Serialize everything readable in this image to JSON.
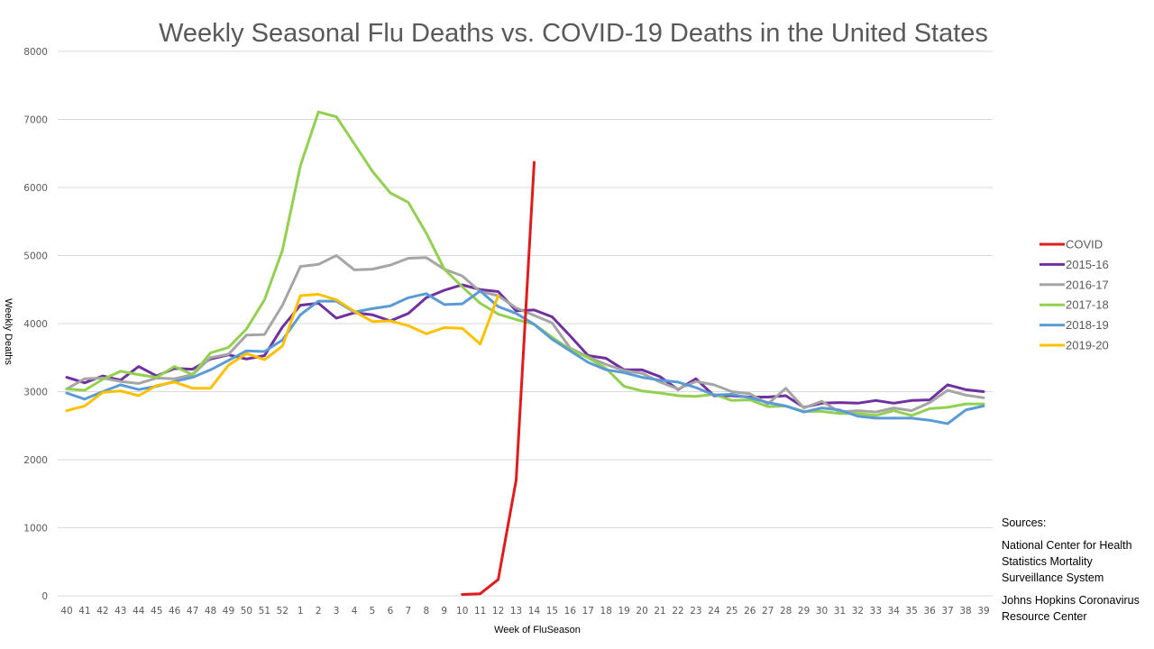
{
  "chart_data": {
    "type": "line",
    "title": "Weekly Seasonal Flu Deaths vs. COVID-19 Deaths in the United States",
    "xlabel": "Week of FluSeason",
    "ylabel": "Weekly Deaths",
    "ylim": [
      0,
      8000
    ],
    "yticks": [
      "0",
      "1000",
      "2000",
      "3000",
      "4000",
      "5000",
      "6000",
      "7000",
      "8000"
    ],
    "grid": true,
    "legend_position": "right",
    "categories": [
      "40",
      "41",
      "42",
      "43",
      "44",
      "45",
      "46",
      "47",
      "48",
      "49",
      "50",
      "51",
      "52",
      "1",
      "2",
      "3",
      "4",
      "5",
      "6",
      "7",
      "8",
      "9",
      "10",
      "11",
      "12",
      "13",
      "14",
      "15",
      "16",
      "17",
      "18",
      "19",
      "20",
      "21",
      "22",
      "23",
      "24",
      "25",
      "26",
      "27",
      "28",
      "29",
      "30",
      "31",
      "32",
      "33",
      "34",
      "35",
      "36",
      "37",
      "38",
      "39"
    ],
    "series": [
      {
        "name": "COVID",
        "color": "#e01b1b",
        "values": [
          null,
          null,
          null,
          null,
          null,
          null,
          null,
          null,
          null,
          null,
          null,
          null,
          null,
          null,
          null,
          null,
          null,
          null,
          null,
          null,
          null,
          null,
          20,
          30,
          240,
          1700,
          6370,
          null,
          null,
          null,
          null,
          null,
          null,
          null,
          null,
          null,
          null,
          null,
          null,
          null,
          null,
          null,
          null,
          null,
          null,
          null,
          null,
          null,
          null,
          null,
          null,
          null
        ]
      },
      {
        "name": "2015-16",
        "color": "#7030a0",
        "values": [
          3210,
          3130,
          3230,
          3170,
          3370,
          3230,
          3340,
          3330,
          3480,
          3540,
          3480,
          3530,
          3950,
          4270,
          4300,
          4080,
          4160,
          4130,
          4040,
          4150,
          4380,
          4490,
          4570,
          4500,
          4470,
          4190,
          4200,
          4100,
          3820,
          3530,
          3490,
          3320,
          3320,
          3220,
          3030,
          3190,
          2940,
          2940,
          2920,
          2920,
          2940,
          2770,
          2830,
          2840,
          2830,
          2870,
          2830,
          2870,
          2880,
          3100,
          3030,
          3000
        ]
      },
      {
        "name": "2016-17",
        "color": "#a5a5a5",
        "values": [
          3040,
          3190,
          3200,
          3150,
          3120,
          3200,
          3190,
          3250,
          3500,
          3550,
          3830,
          3840,
          4270,
          4840,
          4870,
          5000,
          4790,
          4800,
          4860,
          4960,
          4970,
          4800,
          4700,
          4470,
          4410,
          4230,
          4120,
          4010,
          3640,
          3510,
          3400,
          3310,
          3270,
          3140,
          3040,
          3150,
          3100,
          3000,
          2970,
          2820,
          3050,
          2760,
          2860,
          2700,
          2720,
          2700,
          2760,
          2720,
          2840,
          3020,
          2950,
          2910
        ]
      },
      {
        "name": "2017-18",
        "color": "#92d050",
        "values": [
          3040,
          3020,
          3180,
          3300,
          3250,
          3210,
          3370,
          3250,
          3570,
          3650,
          3920,
          4350,
          5080,
          6320,
          7110,
          7040,
          6640,
          6240,
          5920,
          5780,
          5330,
          4800,
          4540,
          4300,
          4140,
          4060,
          3990,
          3800,
          3620,
          3500,
          3340,
          3080,
          3010,
          2980,
          2940,
          2930,
          2960,
          2870,
          2880,
          2780,
          2790,
          2710,
          2710,
          2680,
          2680,
          2650,
          2720,
          2650,
          2750,
          2770,
          2820,
          2820
        ]
      },
      {
        "name": "2018-19",
        "color": "#5b9bd5",
        "values": [
          2980,
          2890,
          3000,
          3100,
          3030,
          3080,
          3150,
          3210,
          3320,
          3460,
          3600,
          3590,
          3760,
          4130,
          4330,
          4330,
          4170,
          4220,
          4260,
          4380,
          4440,
          4280,
          4290,
          4480,
          4250,
          4150,
          3990,
          3770,
          3600,
          3430,
          3320,
          3280,
          3210,
          3170,
          3140,
          3060,
          2950,
          2960,
          2910,
          2840,
          2790,
          2700,
          2760,
          2730,
          2640,
          2610,
          2610,
          2610,
          2580,
          2530,
          2730,
          2790
        ]
      },
      {
        "name": "2019-20",
        "color": "#ffc000",
        "values": [
          2720,
          2790,
          2990,
          3010,
          2940,
          3090,
          3140,
          3050,
          3050,
          3390,
          3560,
          3470,
          3670,
          4410,
          4430,
          4350,
          4180,
          4030,
          4040,
          3970,
          3850,
          3940,
          3930,
          3700,
          4410,
          null,
          null,
          null,
          null,
          null,
          null,
          null,
          null,
          null,
          null,
          null,
          null,
          null,
          null,
          null,
          null,
          null,
          null,
          null,
          null,
          null,
          null,
          null,
          null,
          null,
          null,
          null
        ]
      }
    ]
  },
  "sources": {
    "heading": "Sources:",
    "items": [
      "National Center for Health Statistics Mortality Surveillance System",
      "Johns Hopkins Coronavirus Resource Center"
    ]
  }
}
